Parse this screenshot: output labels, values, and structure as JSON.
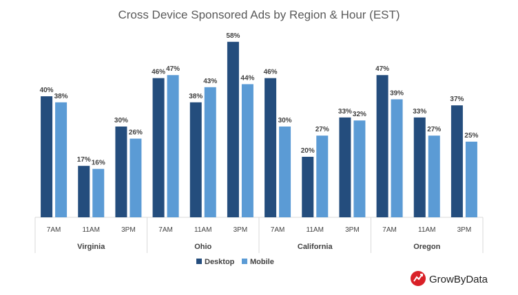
{
  "title": "Cross Device Sponsored Ads by Region & Hour (EST)",
  "chart_data": {
    "type": "bar",
    "title": "Cross Device Sponsored Ads by Region & Hour (EST)",
    "groups": [
      {
        "name": "Virginia",
        "categories": [
          "7AM",
          "11AM",
          "3PM"
        ]
      },
      {
        "name": "Ohio",
        "categories": [
          "7AM",
          "11AM",
          "3PM"
        ]
      },
      {
        "name": "California",
        "categories": [
          "7AM",
          "11AM",
          "3PM"
        ]
      },
      {
        "name": "Oregon",
        "categories": [
          "7AM",
          "11AM",
          "3PM"
        ]
      }
    ],
    "series": [
      {
        "name": "Desktop",
        "color": "#244d7d",
        "values": [
          40,
          17,
          30,
          46,
          38,
          58,
          46,
          20,
          33,
          47,
          33,
          37
        ]
      },
      {
        "name": "Mobile",
        "color": "#5b9bd5",
        "values": [
          38,
          16,
          26,
          47,
          43,
          44,
          30,
          27,
          32,
          39,
          27,
          25
        ]
      }
    ],
    "value_suffix": "%",
    "ylim": [
      0,
      58
    ],
    "grid": false,
    "legend_position": "bottom"
  },
  "legend": {
    "desktop": "Desktop",
    "mobile": "Mobile"
  },
  "brand": {
    "name": "GrowByData",
    "color": "#d92027"
  }
}
